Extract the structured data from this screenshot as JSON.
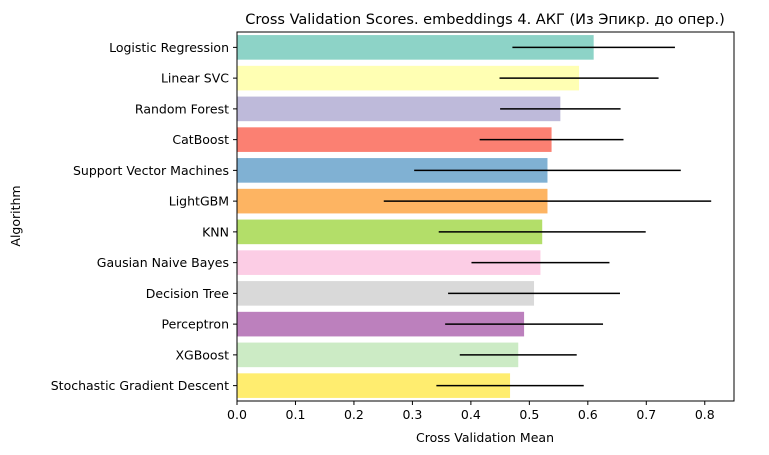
{
  "chart_data": {
    "type": "bar",
    "orientation": "horizontal",
    "title": "Cross Validation Scores. embeddings 4. АКГ (Из Эпикр. до опер.)",
    "xlabel": "Cross Validation Mean",
    "ylabel": "Algorithm",
    "xlim": [
      0.0,
      0.85
    ],
    "xticks": [
      0.0,
      0.1,
      0.2,
      0.3,
      0.4,
      0.5,
      0.6,
      0.7,
      0.8
    ],
    "xtick_labels": [
      "0.0",
      "0.1",
      "0.2",
      "0.3",
      "0.4",
      "0.5",
      "0.6",
      "0.7",
      "0.8"
    ],
    "grid": false,
    "categories": [
      "Logistic Regression",
      "Linear SVC",
      "Random Forest",
      "CatBoost",
      "Support Vector Machines",
      "LightGBM",
      "KNN",
      "Gausian Naive Bayes",
      "Decision Tree",
      "Perceptron",
      "XGBoost",
      "Stochastic Gradient Descent"
    ],
    "values": [
      0.61,
      0.585,
      0.553,
      0.538,
      0.531,
      0.531,
      0.522,
      0.519,
      0.508,
      0.491,
      0.481,
      0.467
    ],
    "errors": [
      0.139,
      0.136,
      0.103,
      0.123,
      0.228,
      0.28,
      0.177,
      0.118,
      0.147,
      0.135,
      0.1,
      0.126
    ],
    "colors": [
      "#8dd3c7",
      "#ffffb3",
      "#bebada",
      "#fb8072",
      "#80b1d3",
      "#fdb462",
      "#b3de69",
      "#fccde5",
      "#d9d9d9",
      "#bc80bd",
      "#ccebc5",
      "#ffed6f"
    ]
  }
}
